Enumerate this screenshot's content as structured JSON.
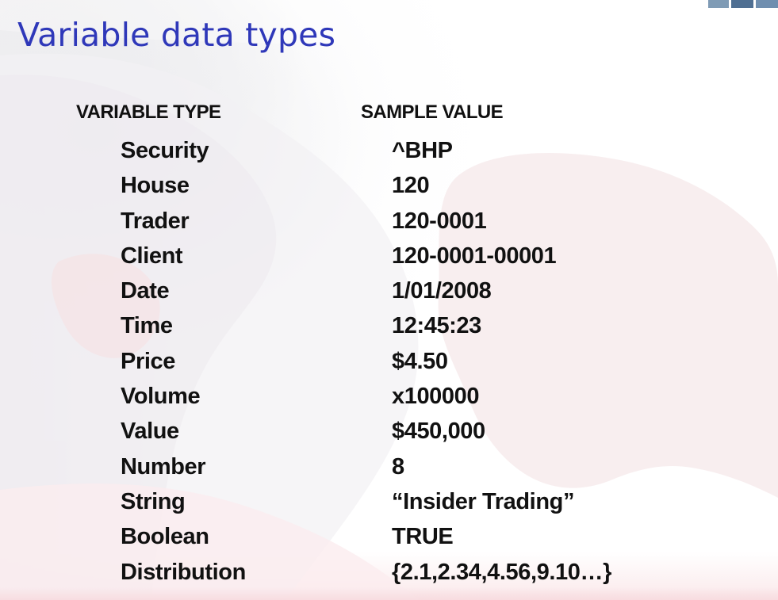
{
  "slide": {
    "title": "Variable data types"
  },
  "table": {
    "headers": {
      "left": "VARIABLE TYPE",
      "right": "SAMPLE VALUE"
    },
    "rows": [
      {
        "type": "Security",
        "sample": "^BHP"
      },
      {
        "type": "House",
        "sample": "120"
      },
      {
        "type": "Trader",
        "sample": "120-0001"
      },
      {
        "type": "Client",
        "sample": "120-0001-00001"
      },
      {
        "type": "Date",
        "sample": "1/01/2008"
      },
      {
        "type": "Time",
        "sample": "12:45:23"
      },
      {
        "type": "Price",
        "sample": "$4.50"
      },
      {
        "type": "Volume",
        "sample": "x100000"
      },
      {
        "type": "Value",
        "sample": "$450,000"
      },
      {
        "type": "Number",
        "sample": "8"
      },
      {
        "type": "String",
        "sample": "“Insider Trading”"
      },
      {
        "type": "Boolean",
        "sample": "TRUE"
      },
      {
        "type": "Distribution",
        "sample": "{2.1,2.34,4.56,9.10…}"
      }
    ]
  }
}
